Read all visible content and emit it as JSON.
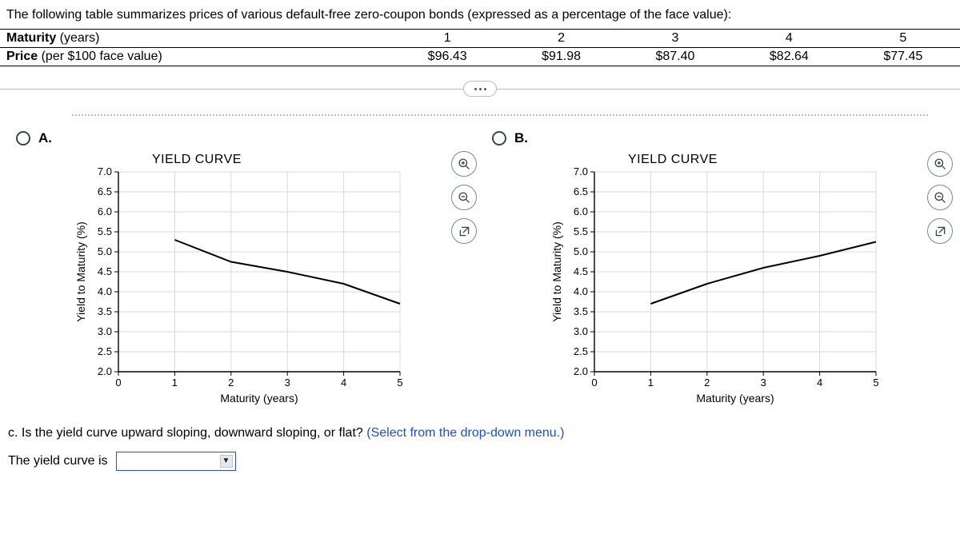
{
  "intro": "The following table summarizes prices of various default-free zero-coupon bonds (expressed as a percentage of the face value):",
  "table": {
    "row1_label_bold": "Maturity",
    "row1_label_rest": " (years)",
    "row2_label_bold": "Price",
    "row2_label_rest": " (per $100 face value)",
    "maturities": [
      "1",
      "2",
      "3",
      "4",
      "5"
    ],
    "prices": [
      "$96.43",
      "$91.98",
      "$87.40",
      "$82.64",
      "$77.45"
    ]
  },
  "option_a": {
    "label": "A."
  },
  "option_b": {
    "label": "B."
  },
  "chart_a": {
    "title": "YIELD CURVE",
    "xlabel": "Maturity (years)",
    "ylabel": "Yield to Maturity (%)",
    "xlim": [
      0,
      5
    ],
    "ylim": [
      2.0,
      7.0
    ],
    "xticks": [
      0,
      1,
      2,
      3,
      4,
      5
    ],
    "yticks": [
      2.0,
      2.5,
      3.0,
      3.5,
      4.0,
      4.5,
      5.0,
      5.5,
      6.0,
      6.5,
      7.0
    ],
    "grid_color": "#d9d9dd",
    "axis_color": "#000000",
    "line_color": "#000000",
    "line_width": 2,
    "background_color": "#ffffff",
    "points": [
      {
        "x": 1,
        "y": 5.3
      },
      {
        "x": 2,
        "y": 4.75
      },
      {
        "x": 3,
        "y": 4.5
      },
      {
        "x": 4,
        "y": 4.2
      },
      {
        "x": 5,
        "y": 3.7
      }
    ]
  },
  "chart_b": {
    "title": "YIELD CURVE",
    "xlabel": "Maturity (years)",
    "ylabel": "Yield to Maturity (%)",
    "xlim": [
      0,
      5
    ],
    "ylim": [
      2.0,
      7.0
    ],
    "xticks": [
      0,
      1,
      2,
      3,
      4,
      5
    ],
    "yticks": [
      2.0,
      2.5,
      3.0,
      3.5,
      4.0,
      4.5,
      5.0,
      5.5,
      6.0,
      6.5,
      7.0
    ],
    "grid_color": "#d9d9dd",
    "axis_color": "#000000",
    "line_color": "#000000",
    "line_width": 2,
    "background_color": "#ffffff",
    "points": [
      {
        "x": 1,
        "y": 3.7
      },
      {
        "x": 2,
        "y": 4.2
      },
      {
        "x": 3,
        "y": 4.6
      },
      {
        "x": 4,
        "y": 4.9
      },
      {
        "x": 5,
        "y": 5.25
      }
    ]
  },
  "question_c": {
    "prefix": "c. Is the yield curve upward sloping, downward sloping, or flat?  ",
    "hint": "(Select from the drop-down menu.)"
  },
  "answer": {
    "label": "The yield curve is"
  }
}
